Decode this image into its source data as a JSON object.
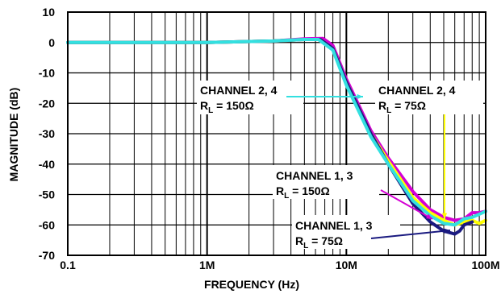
{
  "chart_data": {
    "type": "line",
    "xlabel": "FREQUENCY (Hz)",
    "ylabel": "MAGNITUDE (dB)",
    "x_scale": "log",
    "xlim": [
      100000,
      100000000
    ],
    "ylim": [
      -70,
      10
    ],
    "grid": true,
    "x_tick_labels": [
      "0.1",
      "1M",
      "10M",
      "100M"
    ],
    "y_tick_labels": [
      "10",
      "0",
      "-10",
      "-20",
      "-30",
      "-40",
      "-50",
      "-60",
      "-70"
    ],
    "series": [
      {
        "color": "#d400d4",
        "x": [
          100000,
          1000000,
          3000000,
          5000000,
          6800000,
          8000000,
          10000000,
          15000000,
          20000000,
          30000000,
          40000000,
          50000000,
          60000000,
          70000000,
          80000000,
          90000000,
          100000000
        ],
        "y": [
          0,
          0,
          0.5,
          1.2,
          1.3,
          -1,
          -12,
          -29,
          -38,
          -49,
          -55,
          -57.5,
          -58.5,
          -58,
          -56,
          -56,
          -55.5
        ]
      },
      {
        "color": "#ffff00",
        "x": [
          100000,
          1000000,
          3000000,
          5000000,
          6500000,
          8000000,
          10000000,
          15000000,
          20000000,
          30000000,
          40000000,
          50000000,
          60000000,
          70000000,
          80000000,
          90000000,
          100000000
        ],
        "y": [
          0,
          0,
          0.5,
          1,
          1,
          -2,
          -13,
          -30,
          -39,
          -51,
          -56,
          -58.5,
          -60,
          -59,
          -58.5,
          -59.5,
          -58.5
        ]
      },
      {
        "color": "#1a1a80",
        "x": [
          100000,
          1000000,
          3000000,
          5000000,
          6500000,
          8000000,
          10000000,
          15000000,
          20000000,
          30000000,
          40000000,
          50000000,
          60000000,
          65000000,
          70000000,
          80000000
        ],
        "y": [
          0,
          0,
          0.5,
          1,
          1,
          -2,
          -13,
          -30,
          -40,
          -53,
          -59,
          -62,
          -63,
          -62,
          -60,
          -59
        ]
      },
      {
        "color": "#33e0e0",
        "x": [
          100000,
          1000000,
          3000000,
          5000000,
          6300000,
          8000000,
          10000000,
          15000000,
          20000000,
          30000000,
          40000000,
          50000000,
          60000000,
          70000000,
          80000000,
          90000000,
          100000000
        ],
        "y": [
          0,
          0,
          0.5,
          1,
          1,
          -2.5,
          -14,
          -31,
          -40,
          -52,
          -57,
          -59.5,
          -60,
          -58,
          -57.5,
          -56.5,
          -55.5
        ]
      }
    ],
    "annotations": [
      {
        "line1": "CHANNEL 2, 4",
        "r_sub": "L",
        "r_value": " = 150Ω"
      },
      {
        "line1": "CHANNEL 2, 4",
        "r_sub": "L",
        "r_value": " = 75Ω"
      },
      {
        "line1": "CHANNEL 1, 3",
        "r_sub": "L",
        "r_value": " = 150Ω"
      },
      {
        "line1": "CHANNEL 1, 3",
        "r_sub": "L",
        "r_value": " = 75Ω"
      }
    ]
  }
}
